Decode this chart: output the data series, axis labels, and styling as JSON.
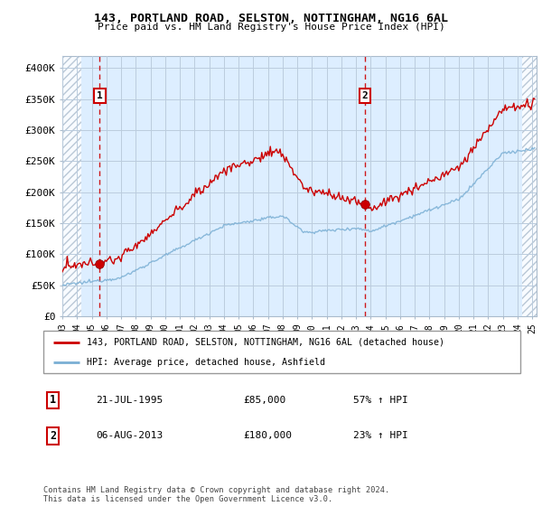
{
  "title": "143, PORTLAND ROAD, SELSTON, NOTTINGHAM, NG16 6AL",
  "subtitle": "Price paid vs. HM Land Registry's House Price Index (HPI)",
  "legend_line1": "143, PORTLAND ROAD, SELSTON, NOTTINGHAM, NG16 6AL (detached house)",
  "legend_line2": "HPI: Average price, detached house, Ashfield",
  "annotation1_date": "21-JUL-1995",
  "annotation1_price": "£85,000",
  "annotation1_hpi": "57% ↑ HPI",
  "annotation2_date": "06-AUG-2013",
  "annotation2_price": "£180,000",
  "annotation2_hpi": "23% ↑ HPI",
  "footer": "Contains HM Land Registry data © Crown copyright and database right 2024.\nThis data is licensed under the Open Government Licence v3.0.",
  "ylim": [
    0,
    420000
  ],
  "yticks": [
    0,
    50000,
    100000,
    150000,
    200000,
    250000,
    300000,
    350000,
    400000
  ],
  "ytick_labels": [
    "£0",
    "£50K",
    "£100K",
    "£150K",
    "£200K",
    "£250K",
    "£300K",
    "£350K",
    "£400K"
  ],
  "sale1_x": 1995.55,
  "sale1_y": 85000,
  "sale2_x": 2013.6,
  "sale2_y": 180000,
  "xmin": 1993.0,
  "xmax": 2025.3,
  "line_color_house": "#cc0000",
  "line_color_hpi": "#7aafd4",
  "dot_color": "#cc0000",
  "vline_color": "#cc0000",
  "plot_bg_color": "#ddeeff",
  "hatch_bg_color": "#d0d8e0",
  "grid_color": "#bbccdd",
  "legend_border": "#999999",
  "annot_border": "#cc0000"
}
